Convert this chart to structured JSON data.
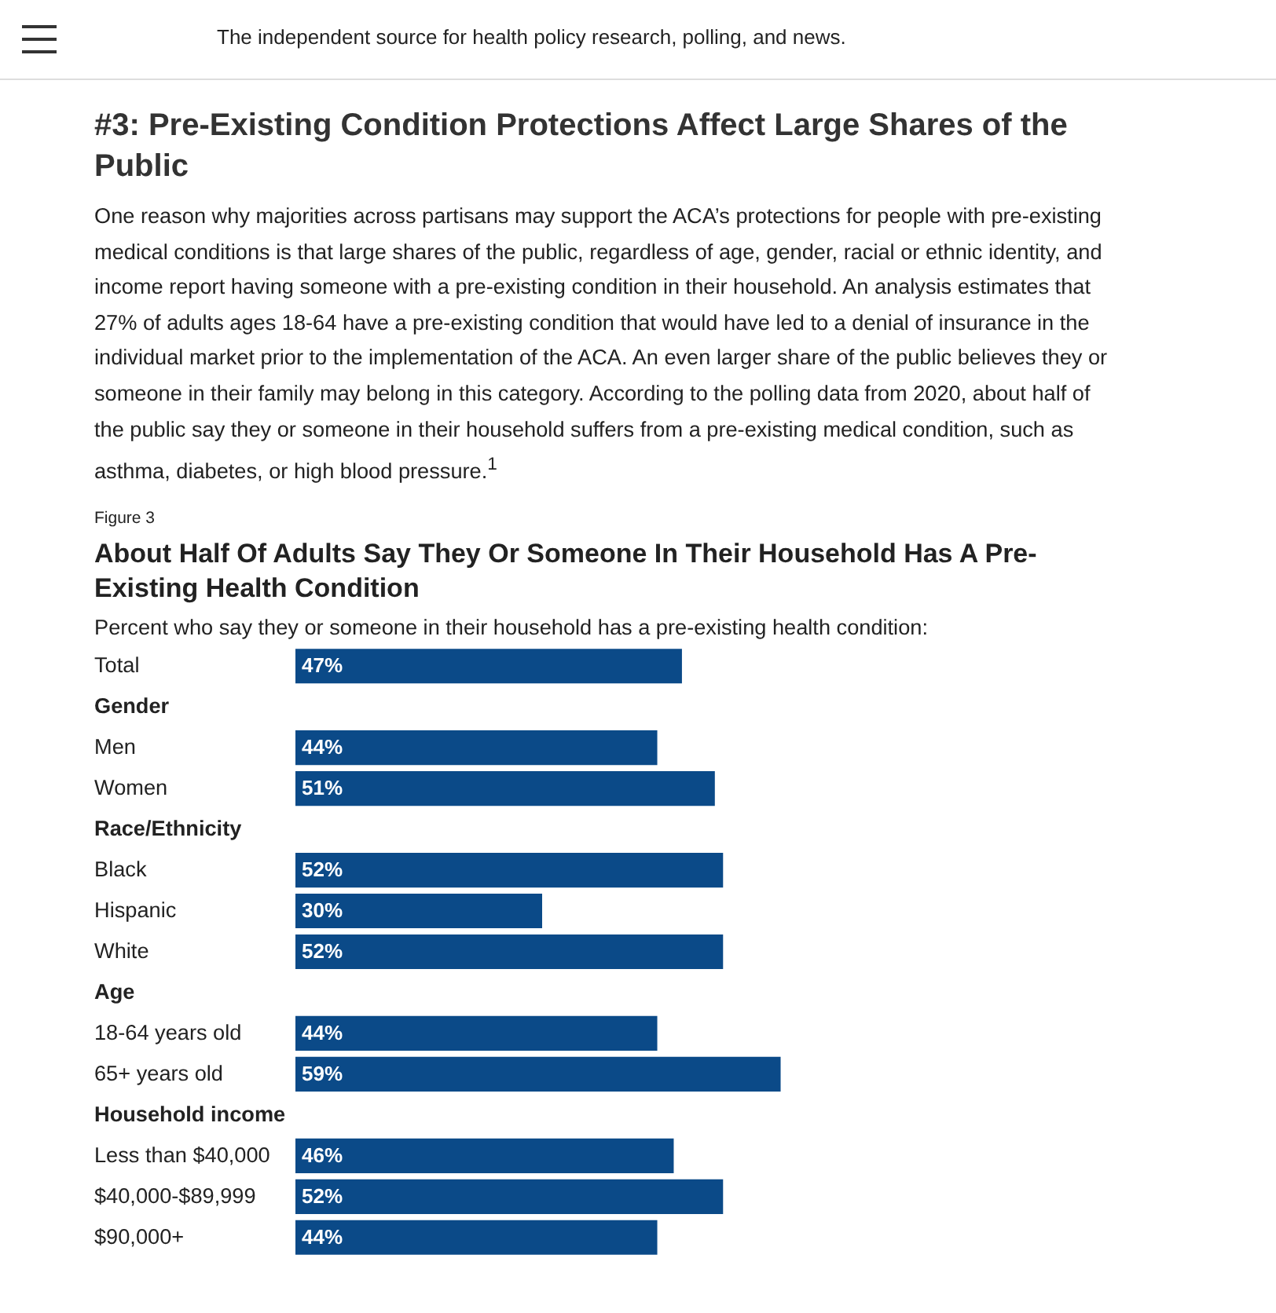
{
  "chart_data": {
    "type": "bar",
    "orientation": "horizontal",
    "title": "About Half Of Adults Say They Or Someone In Their Household Has A Pre-Existing Health Condition",
    "subtitle": "Percent who say they or someone in their household has a pre-existing health condition:",
    "annotations": [
      "The independent source for health policy research, polling, and news.",
      "#3: Pre-Existing Condition Protections Affect Large Shares of the Public",
      "One reason why majorities across partisans may support the ACA’s protections for people with pre-existing medical conditions is that large shares of the public, regardless of age, gender, racial or ethnic identity, and income report having someone with a pre-existing condition in their household. An analysis estimates that 27% of adults ages 18-64 have a pre-existing condition that would have led to a denial of insurance in the individual market prior to the implementation of the ACA. An even larger share of the public believes they or someone in their family may belong in this category. According to the polling data from 2020, about half of the public say they or someone in their household suffers from a pre-existing medical condition, such as asthma, diabetes, or high blood pressure.$^{1}$",
      "Figure 3"
    ],
    "categories": [
      "Total",
      "Gender",
      "Men",
      "Women",
      "Race/Ethnicity",
      "Black",
      "Hispanic",
      "White",
      "Age",
      "18-64 years old",
      "65+ years old",
      "Household income",
      "Less than $40,000",
      "$40,000-$89,999",
      "$90,000+"
    ],
    "values": [
      47,
      null,
      44,
      51,
      null,
      52,
      30,
      52,
      null,
      44,
      59,
      null,
      46,
      52,
      44
    ],
    "value_labels": [
      "47%",
      null,
      "44%",
      "51%",
      null,
      "52%",
      "30%",
      "52%",
      null,
      "44%",
      "59%",
      null,
      "46%",
      "52%",
      "44%"
    ],
    "color": "#0b4a88"
  }
}
